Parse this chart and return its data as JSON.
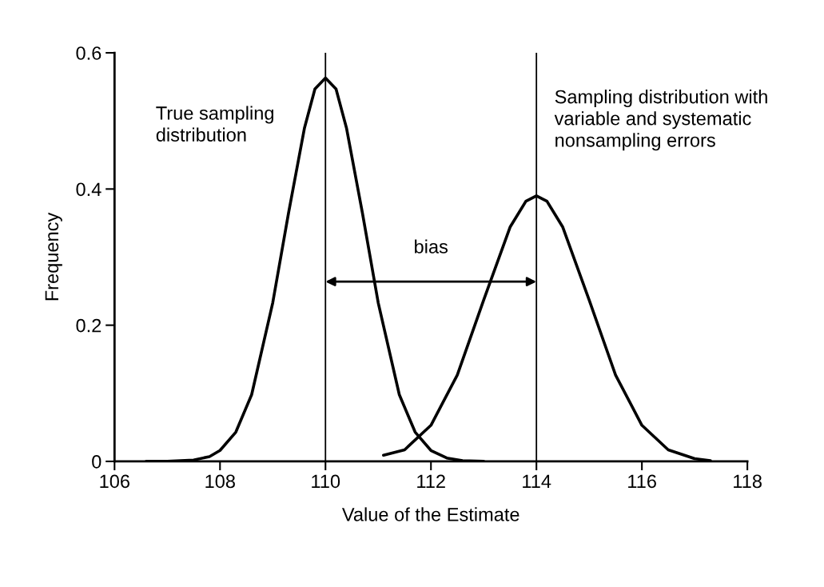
{
  "chart_data": {
    "type": "line",
    "xlabel": "Value of the Estimate",
    "ylabel": "Frequency",
    "xlim": [
      106,
      118
    ],
    "xticks": [
      106,
      108,
      110,
      112,
      114,
      116,
      118
    ],
    "ylim": [
      0,
      0.6
    ],
    "yticks": [
      0,
      0.2,
      0.4,
      0.6
    ],
    "grid": false,
    "legend": false,
    "marker": "none",
    "line_style": "solid",
    "series": [
      {
        "name": "True sampling\ndistribution",
        "color": "#000000",
        "x": [
          106.6,
          107.0,
          107.5,
          107.8,
          108.0,
          108.3,
          108.6,
          109.0,
          109.3,
          109.6,
          109.8,
          110.0,
          110.2,
          110.4,
          110.7,
          111.0,
          111.4,
          111.7,
          112.0,
          112.3,
          112.6,
          113.0
        ],
        "values": [
          0,
          0,
          0.002,
          0.007,
          0.016,
          0.043,
          0.098,
          0.233,
          0.365,
          0.489,
          0.547,
          0.563,
          0.547,
          0.489,
          0.365,
          0.233,
          0.098,
          0.043,
          0.016,
          0.005,
          0.001,
          0
        ]
      },
      {
        "name": "Sampling distribution with\nvariable and systematic\nnonsampling errors",
        "color": "#000000",
        "x": [
          111.1,
          111.5,
          112.0,
          112.5,
          113.0,
          113.5,
          113.8,
          114.0,
          114.2,
          114.5,
          115.0,
          115.5,
          116.0,
          116.5,
          117.0,
          117.3
        ],
        "values": [
          0.009,
          0.017,
          0.053,
          0.127,
          0.237,
          0.344,
          0.382,
          0.39,
          0.382,
          0.344,
          0.237,
          0.127,
          0.053,
          0.017,
          0.004,
          0.001
        ]
      }
    ],
    "ref_lines": [
      {
        "axis": "x",
        "value": 110,
        "color": "#000000"
      },
      {
        "axis": "x",
        "value": 114,
        "color": "#000000"
      }
    ],
    "annotations": [
      "bias"
    ]
  }
}
